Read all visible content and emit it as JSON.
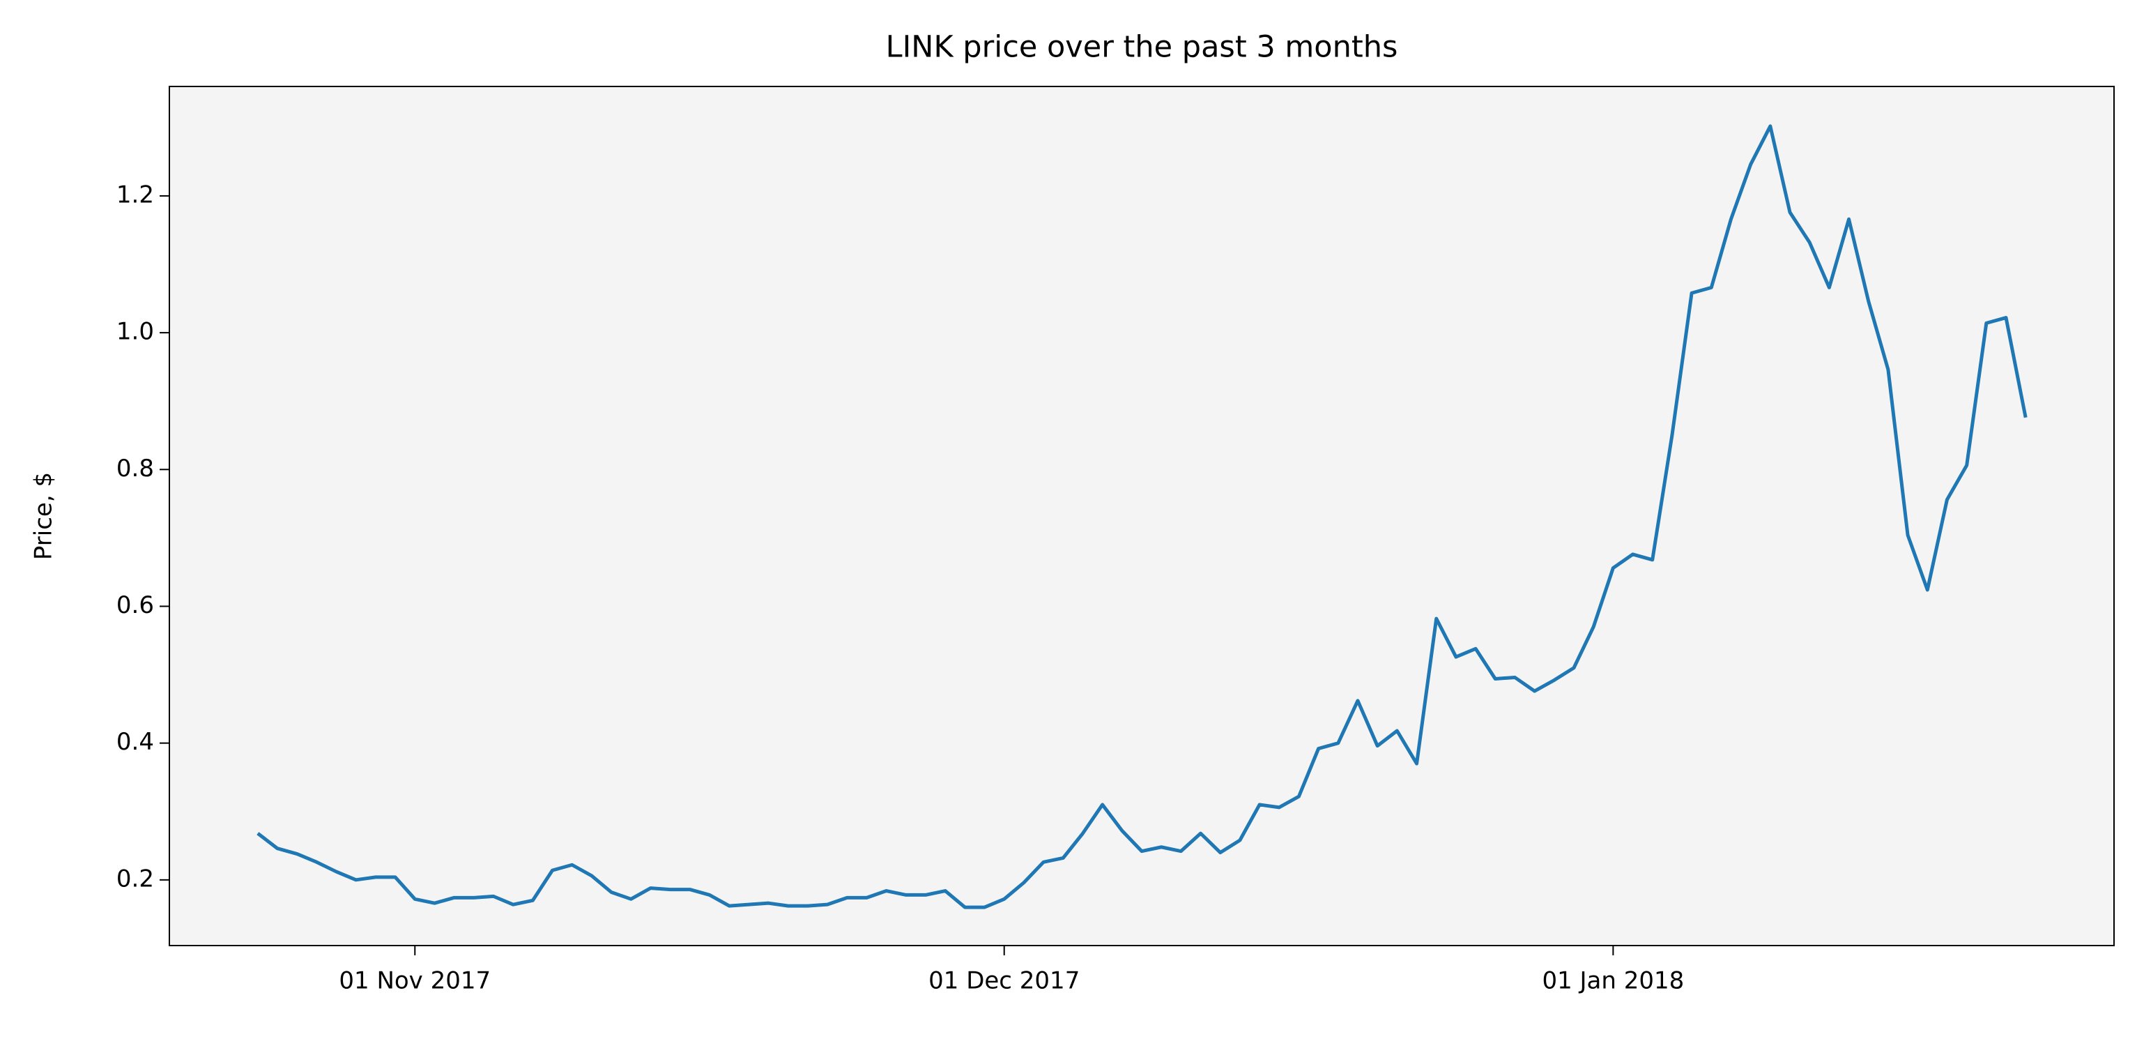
{
  "chart_data": {
    "type": "line",
    "title": "LINK price over the past 3 months",
    "y_label": "Price, $",
    "x": [
      "2017-10-24",
      "2017-10-25",
      "2017-10-26",
      "2017-10-27",
      "2017-10-28",
      "2017-10-29",
      "2017-10-30",
      "2017-10-31",
      "2017-11-01",
      "2017-11-02",
      "2017-11-03",
      "2017-11-04",
      "2017-11-05",
      "2017-11-06",
      "2017-11-07",
      "2017-11-08",
      "2017-11-09",
      "2017-11-10",
      "2017-11-11",
      "2017-11-12",
      "2017-11-13",
      "2017-11-14",
      "2017-11-15",
      "2017-11-16",
      "2017-11-17",
      "2017-11-18",
      "2017-11-19",
      "2017-11-20",
      "2017-11-21",
      "2017-11-22",
      "2017-11-23",
      "2017-11-24",
      "2017-11-25",
      "2017-11-26",
      "2017-11-27",
      "2017-11-28",
      "2017-11-29",
      "2017-11-30",
      "2017-12-01",
      "2017-12-02",
      "2017-12-03",
      "2017-12-04",
      "2017-12-05",
      "2017-12-06",
      "2017-12-07",
      "2017-12-08",
      "2017-12-09",
      "2017-12-10",
      "2017-12-11",
      "2017-12-12",
      "2017-12-13",
      "2017-12-14",
      "2017-12-15",
      "2017-12-16",
      "2017-12-17",
      "2017-12-18",
      "2017-12-19",
      "2017-12-20",
      "2017-12-21",
      "2017-12-22",
      "2017-12-23",
      "2017-12-24",
      "2017-12-25",
      "2017-12-26",
      "2017-12-27",
      "2017-12-28",
      "2017-12-29",
      "2017-12-30",
      "2017-12-31",
      "2018-01-01",
      "2018-01-02",
      "2018-01-03",
      "2018-01-04",
      "2018-01-05",
      "2018-01-06",
      "2018-01-07",
      "2018-01-08",
      "2018-01-09",
      "2018-01-10",
      "2018-01-11",
      "2018-01-12",
      "2018-01-13",
      "2018-01-14",
      "2018-01-15",
      "2018-01-16",
      "2018-01-17",
      "2018-01-18",
      "2018-01-19",
      "2018-01-20",
      "2018-01-21",
      "2018-01-22"
    ],
    "series": [
      {
        "name": "LINK",
        "color": "#1f77b4",
        "values": [
          0.268,
          0.246,
          0.238,
          0.226,
          0.212,
          0.2,
          0.204,
          0.204,
          0.172,
          0.166,
          0.174,
          0.174,
          0.176,
          0.164,
          0.17,
          0.214,
          0.222,
          0.206,
          0.182,
          0.172,
          0.188,
          0.186,
          0.186,
          0.178,
          0.162,
          0.164,
          0.166,
          0.162,
          0.162,
          0.164,
          0.174,
          0.174,
          0.184,
          0.178,
          0.178,
          0.184,
          0.16,
          0.16,
          0.172,
          0.196,
          0.226,
          0.232,
          0.268,
          0.31,
          0.272,
          0.242,
          0.248,
          0.242,
          0.268,
          0.24,
          0.258,
          0.31,
          0.306,
          0.322,
          0.392,
          0.4,
          0.462,
          0.396,
          0.418,
          0.37,
          0.582,
          0.526,
          0.538,
          0.494,
          0.496,
          0.476,
          0.492,
          0.51,
          0.57,
          0.656,
          0.676,
          0.668,
          0.85,
          1.058,
          1.066,
          1.166,
          1.246,
          1.302,
          1.176,
          1.132,
          1.066,
          1.166,
          1.046,
          0.946,
          0.704,
          0.624,
          0.756,
          0.806,
          1.014,
          1.022,
          0.876
        ]
      }
    ],
    "xlim": [
      "2017-10-19T12:00:00Z",
      "2018-01-26T12:00:00Z"
    ],
    "xticks": [
      {
        "value": "2017-11-01",
        "label": "01 Nov 2017"
      },
      {
        "value": "2017-12-01",
        "label": "01 Dec 2017"
      },
      {
        "value": "2018-01-01",
        "label": "01 Jan 2018"
      }
    ],
    "ylim": [
      0.104,
      1.36
    ],
    "yticks": [
      0.2,
      0.4,
      0.6,
      0.8,
      {
        "value": 1,
        "label": "1.0"
      },
      1.2
    ],
    "grid": false,
    "background": "#f4f4f4"
  }
}
